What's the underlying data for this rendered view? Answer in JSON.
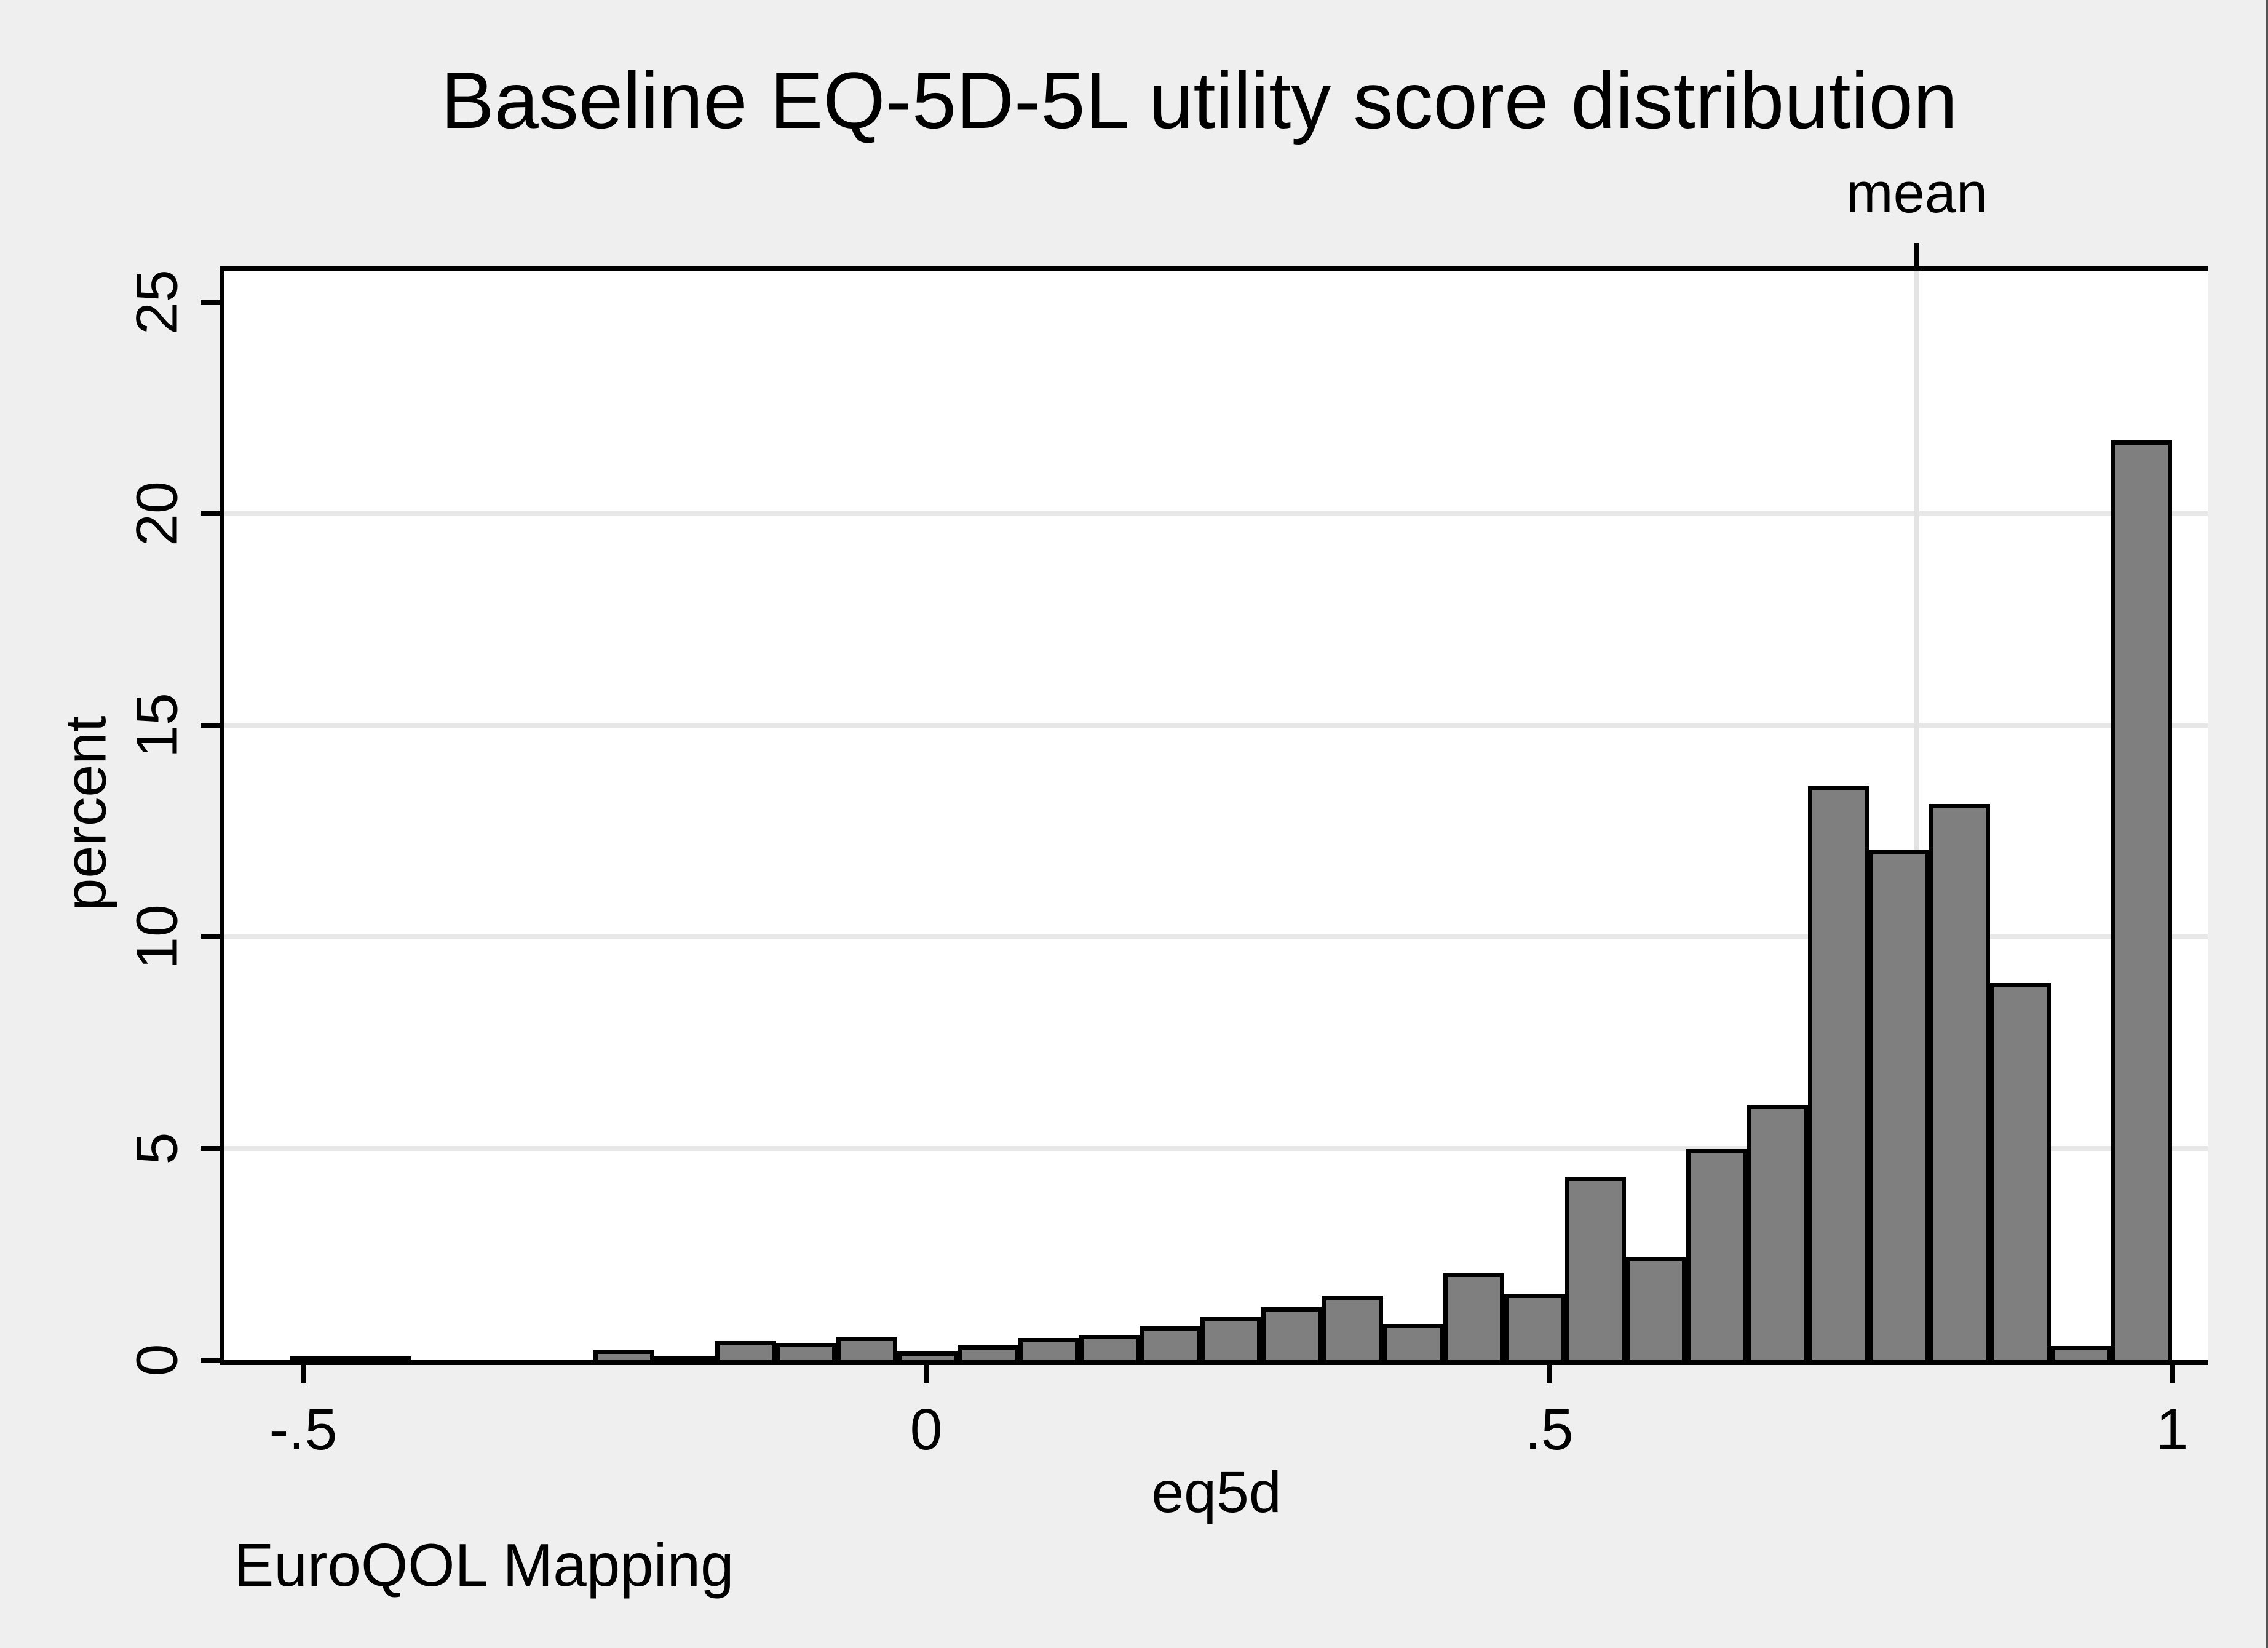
{
  "title": "Baseline EQ-5D-5L utility score distribution",
  "note": "EuroQOL Mapping",
  "colors": {
    "background": "#EFEFEF",
    "plot_background": "#FFFFFF",
    "bar_fill": "#7F7F7F",
    "bar_outline": "#000000",
    "gridline": "#E7E7E7",
    "mean_line": "#E3E3E3",
    "axis": "#000000",
    "text": "#000000"
  },
  "chart_data": {
    "type": "bar",
    "subtype": "histogram",
    "title": "Baseline EQ-5D-5L utility score distribution",
    "xlabel": "eq5d",
    "ylabel": "percent",
    "note": "EuroQOL Mapping",
    "xlim": [
      -0.5632,
      1.0286
    ],
    "ylim": [
      0,
      25.84
    ],
    "grid": "horizontal-only",
    "grid_y_values": [
      5,
      10,
      15,
      20
    ],
    "x_ticks": [
      {
        "value": -0.5,
        "label": "-.5"
      },
      {
        "value": 0,
        "label": "0"
      },
      {
        "value": 0.5,
        "label": ".5"
      },
      {
        "value": 1,
        "label": "1"
      }
    ],
    "y_ticks": [
      {
        "value": 0,
        "label": "0"
      },
      {
        "value": 5,
        "label": "5"
      },
      {
        "value": 10,
        "label": "10"
      },
      {
        "value": 15,
        "label": "15"
      },
      {
        "value": 20,
        "label": "20"
      },
      {
        "value": 25,
        "label": "25"
      }
    ],
    "mean_marker": {
      "label": "mean",
      "value": 0.795
    },
    "bin_width": 0.0487,
    "bins": [
      {
        "x0": -0.5106,
        "x1": -0.4619,
        "pct": 0.1
      },
      {
        "x0": -0.4619,
        "x1": -0.4132,
        "pct": 0.1
      },
      {
        "x0": -0.267,
        "x1": -0.2183,
        "pct": 0.25
      },
      {
        "x0": -0.2183,
        "x1": -0.1695,
        "pct": 0.1
      },
      {
        "x0": -0.1695,
        "x1": -0.1208,
        "pct": 0.45
      },
      {
        "x0": -0.1208,
        "x1": -0.0721,
        "pct": 0.4
      },
      {
        "x0": -0.0721,
        "x1": -0.0233,
        "pct": 0.55
      },
      {
        "x0": -0.0233,
        "x1": 0.0254,
        "pct": 0.2
      },
      {
        "x0": 0.0254,
        "x1": 0.0741,
        "pct": 0.35
      },
      {
        "x0": 0.0741,
        "x1": 0.1229,
        "pct": 0.52
      },
      {
        "x0": 0.1229,
        "x1": 0.1716,
        "pct": 0.6
      },
      {
        "x0": 0.1716,
        "x1": 0.2203,
        "pct": 0.8
      },
      {
        "x0": 0.2203,
        "x1": 0.269,
        "pct": 1.02
      },
      {
        "x0": 0.269,
        "x1": 0.3178,
        "pct": 1.25
      },
      {
        "x0": 0.3178,
        "x1": 0.3665,
        "pct": 1.51
      },
      {
        "x0": 0.3665,
        "x1": 0.4152,
        "pct": 0.86
      },
      {
        "x0": 0.4152,
        "x1": 0.464,
        "pct": 2.06
      },
      {
        "x0": 0.464,
        "x1": 0.5127,
        "pct": 1.57
      },
      {
        "x0": 0.5127,
        "x1": 0.5614,
        "pct": 4.33
      },
      {
        "x0": 0.5614,
        "x1": 0.6102,
        "pct": 2.44
      },
      {
        "x0": 0.6102,
        "x1": 0.6589,
        "pct": 4.99
      },
      {
        "x0": 0.6589,
        "x1": 0.7076,
        "pct": 6.03
      },
      {
        "x0": 0.7076,
        "x1": 0.7564,
        "pct": 13.58
      },
      {
        "x0": 0.7564,
        "x1": 0.8051,
        "pct": 12.05
      },
      {
        "x0": 0.8051,
        "x1": 0.8538,
        "pct": 13.14
      },
      {
        "x0": 0.8538,
        "x1": 0.9025,
        "pct": 8.91
      },
      {
        "x0": 0.9025,
        "x1": 0.9513,
        "pct": 0.33
      },
      {
        "x0": 0.9513,
        "x1": 1.0,
        "pct": 21.73
      }
    ]
  }
}
